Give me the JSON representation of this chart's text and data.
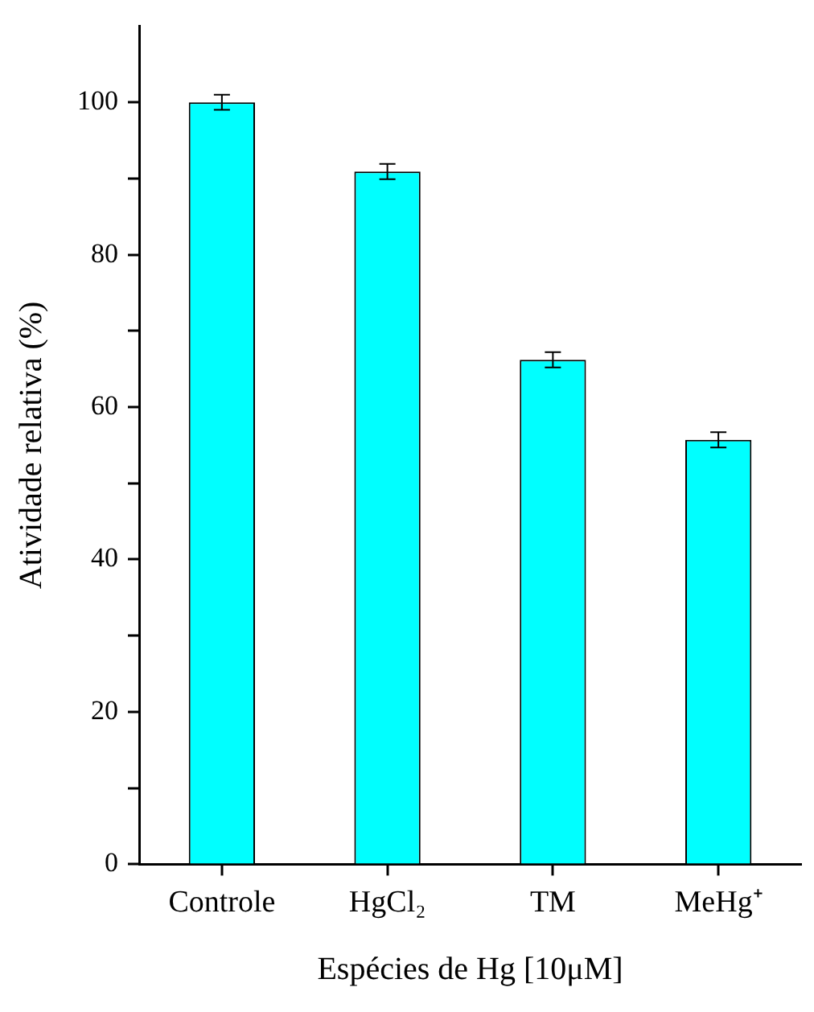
{
  "chart_data": {
    "type": "bar",
    "xlabel": "Espécies de Hg [10μM]",
    "ylabel": "Atividade relativa (%)",
    "categories": [
      "Controle",
      "HgCl₂",
      "TM",
      "MeHg⁺"
    ],
    "values": [
      100,
      90.9,
      66.2,
      55.7
    ],
    "errors": [
      1.0,
      1.0,
      1.0,
      1.0
    ],
    "color": "#00ffff",
    "ylim": [
      0,
      110
    ],
    "yticks": [
      0,
      {
        "value": 10,
        "label": null
      },
      20,
      {
        "value": 30,
        "label": null
      },
      40,
      {
        "value": 50,
        "label": null
      },
      60,
      {
        "value": 70,
        "label": null
      },
      80,
      {
        "value": 90,
        "label": null
      },
      100
    ],
    "grid": false,
    "legend": false
  }
}
